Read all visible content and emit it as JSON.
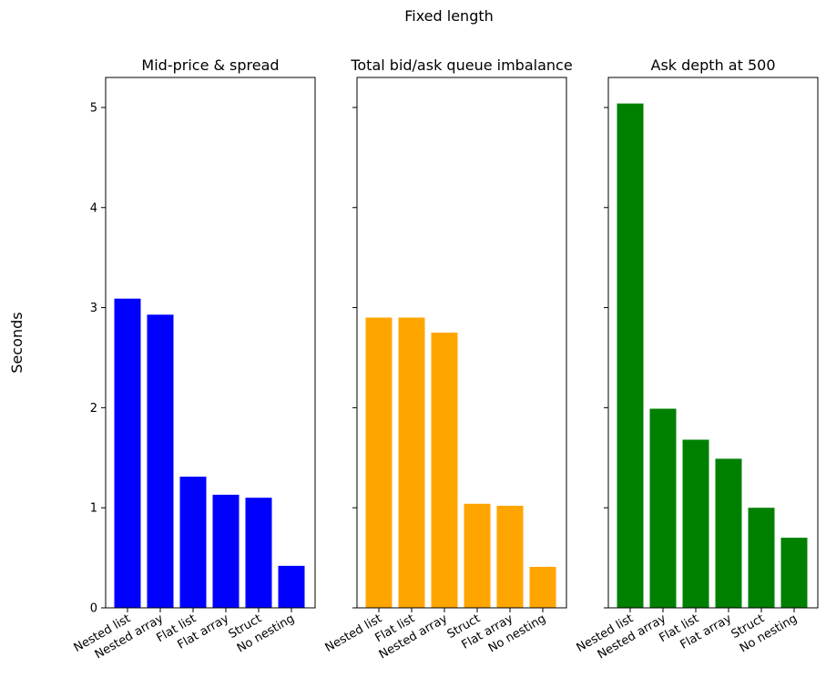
{
  "figure": {
    "suptitle": "Fixed length",
    "ylabel": "Seconds"
  },
  "chart_data": [
    {
      "type": "bar",
      "title": "Mid-price & spread",
      "categories": [
        "Nested list",
        "Nested array",
        "Flat list",
        "Flat array",
        "Struct",
        "No nesting"
      ],
      "values": [
        3.09,
        2.93,
        1.31,
        1.13,
        1.1,
        0.42
      ],
      "color": "#0000ff",
      "ylim": [
        0,
        5.3
      ],
      "yticks": [
        0,
        1,
        2,
        3,
        4,
        5
      ],
      "ylabel": "Seconds",
      "grid": false
    },
    {
      "type": "bar",
      "title": "Total bid/ask queue imbalance",
      "categories": [
        "Nested list",
        "Flat list",
        "Nested array",
        "Struct",
        "Flat array",
        "No nesting"
      ],
      "values": [
        2.9,
        2.9,
        2.75,
        1.04,
        1.02,
        0.41
      ],
      "color": "#ffa500",
      "ylim": [
        0,
        5.3
      ],
      "yticks": [
        0,
        1,
        2,
        3,
        4,
        5
      ],
      "grid": false
    },
    {
      "type": "bar",
      "title": "Ask depth at 500",
      "categories": [
        "Nested list",
        "Nested array",
        "Flat list",
        "Flat array",
        "Struct",
        "No nesting"
      ],
      "values": [
        5.04,
        1.99,
        1.68,
        1.49,
        1.0,
        0.7
      ],
      "color": "#008000",
      "ylim": [
        0,
        5.3
      ],
      "yticks": [
        0,
        1,
        2,
        3,
        4,
        5
      ],
      "grid": false
    }
  ]
}
